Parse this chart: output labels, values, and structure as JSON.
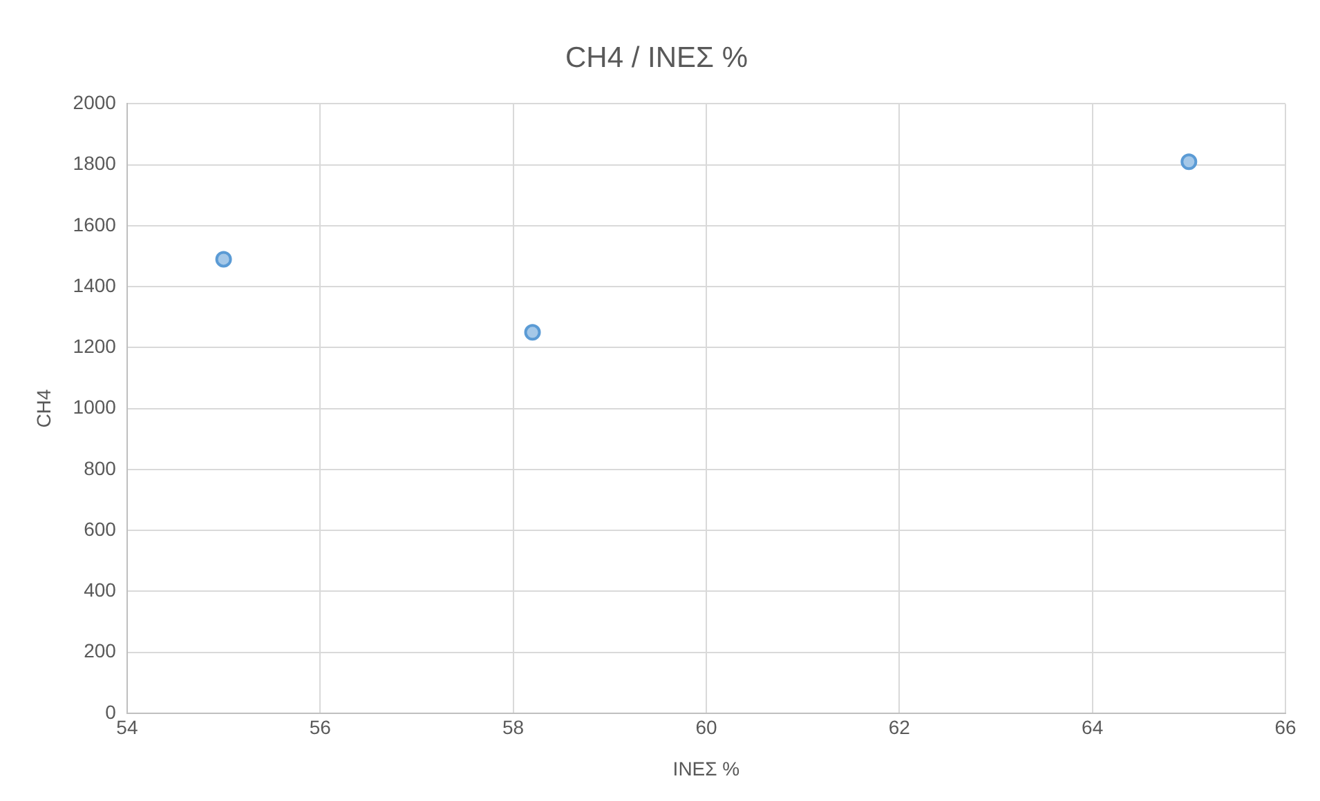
{
  "chart_data": {
    "type": "scatter",
    "title": "CH4 / ΙΝΕΣ %",
    "xlabel": "ΙΝΕΣ %",
    "ylabel": "CH4",
    "x": [
      55,
      58.2,
      65
    ],
    "series": [
      {
        "color": "#5b9bd5",
        "values": [
          1490,
          1250,
          1810
        ]
      }
    ],
    "xlim": [
      54,
      66
    ],
    "xticks": [
      54,
      56,
      58,
      60,
      62,
      64,
      66
    ],
    "ylim": [
      0,
      2000
    ],
    "yticks": [
      0,
      200,
      400,
      600,
      800,
      1000,
      1200,
      1400,
      1600,
      1800,
      2000
    ],
    "grid": true,
    "legend": false,
    "marker": "circle"
  }
}
